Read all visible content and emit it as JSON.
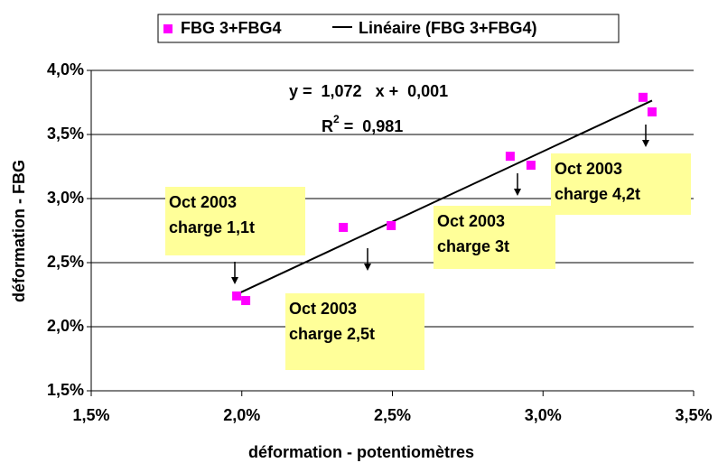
{
  "chart_data": {
    "type": "scatter",
    "legend_position": "top",
    "grid": true,
    "xlabel": "déformation - potentiomètres",
    "ylabel": "déformation - FBG",
    "series": [
      {
        "name": "FBG 3+FBG4",
        "color": "#ff00ff",
        "x": [
          1.983,
          2.013,
          2.337,
          2.496,
          2.891,
          2.96,
          3.332,
          3.362
        ],
        "y": [
          2.24,
          2.204,
          2.775,
          2.789,
          3.33,
          3.26,
          3.79,
          3.676
        ]
      }
    ],
    "trendline": {
      "name": "Linéaire (FBG 3+FBG4)",
      "color": "#000000"
    },
    "equation": "y =  1,072   x +  0,001",
    "r_squared": {
      "label": "R",
      "sup": "2",
      "text": " =  0,981"
    },
    "annotations": [
      {
        "lines": [
          "Oct 2003",
          "charge 1,1t"
        ]
      },
      {
        "lines": [
          "Oct 2003",
          "charge 2,5t"
        ]
      },
      {
        "lines": [
          "Oct 2003",
          "charge 3t"
        ]
      },
      {
        "lines": [
          "Oct 2003",
          "charge 4,2t"
        ]
      }
    ],
    "xlim": [
      1.5,
      3.5
    ],
    "ylim": [
      1.5,
      4.0
    ],
    "xticks": [
      {
        "value": 1.5,
        "label": "1,5%"
      },
      {
        "value": 2.0,
        "label": "2,0%"
      },
      {
        "value": 2.5,
        "label": "2,5%"
      },
      {
        "value": 3.0,
        "label": "3,0%"
      },
      {
        "value": 3.5,
        "label": "3,5%"
      }
    ],
    "yticks": [
      {
        "value": 1.5,
        "label": "1,5%"
      },
      {
        "value": 2.0,
        "label": "2,0%"
      },
      {
        "value": 2.5,
        "label": "2,5%"
      },
      {
        "value": 3.0,
        "label": "3,0%"
      },
      {
        "value": 3.5,
        "label": "3,5%"
      },
      {
        "value": 4.0,
        "label": "4,0%"
      }
    ]
  }
}
